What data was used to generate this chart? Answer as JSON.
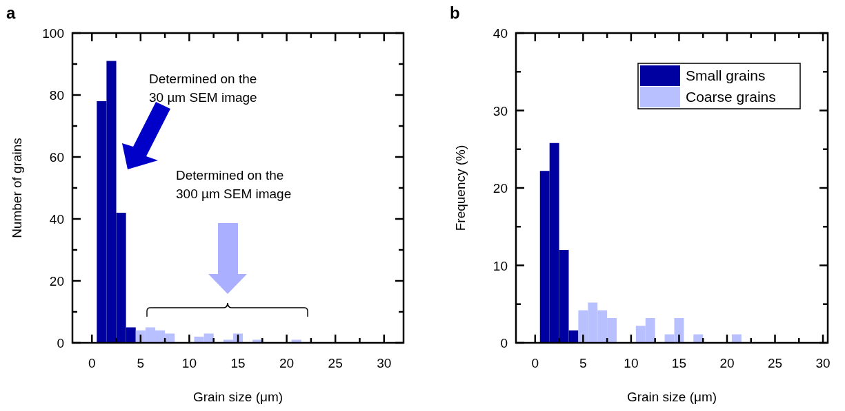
{
  "chart_data": [
    {
      "type": "histogram",
      "title": "a",
      "xlabel": "Grain size (μm)",
      "ylabel": "Number of grains",
      "bins": [
        0.5,
        1.5,
        2.5,
        3.5,
        4.5,
        5.5,
        6.5,
        7.5,
        8.5,
        9.5,
        10.5,
        11.5,
        12.5,
        13.5,
        14.5,
        15.5,
        16.5,
        17.5,
        18.5,
        19.5,
        20.5,
        21.5
      ],
      "series": [
        {
          "color": "#0000a0",
          "values": [
            78,
            91,
            42,
            5,
            0,
            0,
            0,
            0,
            0,
            0,
            0,
            0,
            0,
            0,
            0,
            0,
            0,
            0,
            0,
            0,
            0
          ]
        },
        {
          "color": "#b8c0ff",
          "values": [
            0,
            0,
            0,
            0,
            4,
            5,
            4,
            3,
            0,
            0,
            2,
            3,
            0,
            1,
            3,
            0,
            1,
            0,
            0,
            0,
            1
          ]
        }
      ],
      "xlim": [
        -2,
        32
      ],
      "xticks": [
        0,
        {
          "value": 2.5,
          "label": null
        },
        5,
        {
          "value": 7.5,
          "label": null
        },
        10,
        {
          "value": 12.5,
          "label": null
        },
        15,
        {
          "value": 17.5,
          "label": null
        },
        20,
        {
          "value": 22.5,
          "label": null
        },
        25,
        {
          "value": 27.5,
          "label": null
        },
        30
      ],
      "ylim": [
        0,
        100
      ],
      "yticks": [
        0,
        {
          "value": 10,
          "label": null
        },
        20,
        {
          "value": 30,
          "label": null
        },
        40,
        {
          "value": 50,
          "label": null
        },
        60,
        {
          "value": 70,
          "label": null
        },
        80,
        {
          "value": 90,
          "label": null
        },
        100
      ],
      "annotations": [
        "Determined on the\n30 µm SEM image",
        "Determined on the\n300 µm SEM image"
      ],
      "legend": false
    },
    {
      "type": "histogram",
      "title": "b",
      "xlabel": "Grain size (μm)",
      "ylabel": "Frequency (%)",
      "bins": [
        0.5,
        1.5,
        2.5,
        3.5,
        4.5,
        5.5,
        6.5,
        7.5,
        8.5,
        9.5,
        10.5,
        11.5,
        12.5,
        13.5,
        14.5,
        15.5,
        16.5,
        17.5,
        18.5,
        19.5,
        20.5,
        21.5
      ],
      "series": [
        {
          "name": "Small grains",
          "color": "#0000a0",
          "values": [
            22.2,
            25.8,
            12,
            1.6,
            0,
            0,
            0,
            0,
            0,
            0,
            0,
            0,
            0,
            0,
            0,
            0,
            0,
            0,
            0,
            0,
            0
          ]
        },
        {
          "name": "Coarse grains",
          "color": "#b8c0ff",
          "values": [
            0,
            0,
            0,
            0,
            4.2,
            5.2,
            4.2,
            3.2,
            0,
            0,
            2.2,
            3.2,
            0,
            1.1,
            3.2,
            0,
            1.1,
            0,
            0,
            0,
            1.1
          ]
        }
      ],
      "xlim": [
        -2,
        30.5
      ],
      "xticks": [
        0,
        {
          "value": 2.5,
          "label": null
        },
        5,
        {
          "value": 7.5,
          "label": null
        },
        10,
        {
          "value": 12.5,
          "label": null
        },
        15,
        {
          "value": 17.5,
          "label": null
        },
        20,
        {
          "value": 22.5,
          "label": null
        },
        25,
        {
          "value": 27.5,
          "label": null
        },
        30
      ],
      "ylim": [
        0,
        40
      ],
      "yticks": [
        0,
        {
          "value": 5,
          "label": null
        },
        10,
        {
          "value": 15,
          "label": null
        },
        20,
        {
          "value": 25,
          "label": null
        },
        30,
        {
          "value": 35,
          "label": null
        },
        40
      ],
      "legend": "top right"
    }
  ]
}
